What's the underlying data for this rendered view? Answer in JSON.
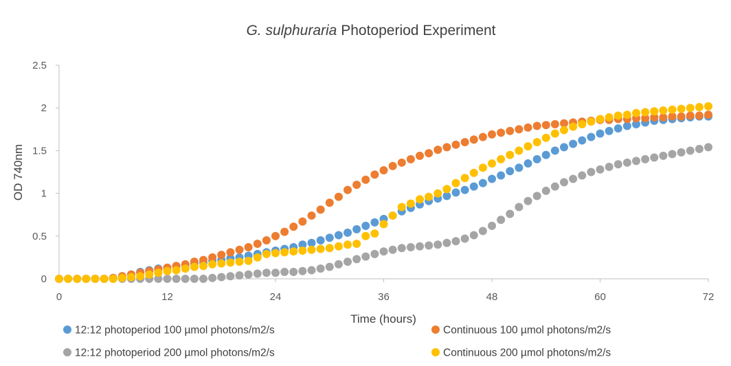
{
  "chart_data": {
    "type": "scatter",
    "title": {
      "italic": "G. sulphuraria",
      "normal": " Photoperiod Experiment"
    },
    "xlabel": "Time (hours)",
    "ylabel": "OD 740nm",
    "xlim": [
      0,
      72
    ],
    "ylim": [
      0,
      2.5
    ],
    "xticks": [
      0,
      12,
      24,
      36,
      48,
      60,
      72
    ],
    "yticks": [
      0,
      0.5,
      1,
      1.5,
      2,
      2.5
    ],
    "ytick_labels": [
      "0",
      "0.5",
      "1",
      "1.5",
      "2",
      "2.5"
    ],
    "grid": false,
    "legend_position": "bottom",
    "x": [
      0,
      1,
      2,
      3,
      4,
      5,
      6,
      7,
      8,
      9,
      10,
      11,
      12,
      13,
      14,
      15,
      16,
      17,
      18,
      19,
      20,
      21,
      22,
      23,
      24,
      25,
      26,
      27,
      28,
      29,
      30,
      31,
      32,
      33,
      34,
      35,
      36,
      37,
      38,
      39,
      40,
      41,
      42,
      43,
      44,
      45,
      46,
      47,
      48,
      49,
      50,
      51,
      52,
      53,
      54,
      55,
      56,
      57,
      58,
      59,
      60,
      61,
      62,
      63,
      64,
      65,
      66,
      67,
      68,
      69,
      70,
      71,
      72
    ],
    "series": [
      {
        "name": "12:12 photoperiod 100 µmol photons/m2/s",
        "color": "#5B9BD5",
        "values": [
          0.0,
          0.0,
          0.0,
          0.0,
          0.0,
          0.0,
          0.01,
          0.03,
          0.05,
          0.08,
          0.1,
          0.12,
          0.13,
          0.15,
          0.16,
          0.18,
          0.19,
          0.21,
          0.22,
          0.24,
          0.25,
          0.27,
          0.29,
          0.31,
          0.33,
          0.35,
          0.37,
          0.4,
          0.42,
          0.45,
          0.48,
          0.51,
          0.54,
          0.58,
          0.62,
          0.66,
          0.7,
          0.74,
          0.79,
          0.83,
          0.87,
          0.91,
          0.94,
          0.97,
          1.01,
          1.04,
          1.08,
          1.12,
          1.17,
          1.21,
          1.26,
          1.3,
          1.35,
          1.4,
          1.45,
          1.5,
          1.54,
          1.58,
          1.62,
          1.66,
          1.7,
          1.73,
          1.76,
          1.79,
          1.81,
          1.83,
          1.85,
          1.86,
          1.87,
          1.88,
          1.89,
          1.9,
          1.9
        ]
      },
      {
        "name": "Continuous 100 µmol photons/m2/s",
        "color": "#ED7D31",
        "values": [
          0.0,
          0.0,
          0.0,
          0.0,
          0.0,
          0.0,
          0.01,
          0.03,
          0.05,
          0.07,
          0.09,
          0.11,
          0.13,
          0.15,
          0.17,
          0.2,
          0.22,
          0.25,
          0.28,
          0.31,
          0.34,
          0.37,
          0.41,
          0.45,
          0.5,
          0.55,
          0.61,
          0.67,
          0.74,
          0.81,
          0.89,
          0.96,
          1.04,
          1.1,
          1.16,
          1.22,
          1.27,
          1.32,
          1.36,
          1.4,
          1.44,
          1.47,
          1.51,
          1.54,
          1.57,
          1.6,
          1.63,
          1.66,
          1.69,
          1.71,
          1.73,
          1.75,
          1.77,
          1.79,
          1.8,
          1.81,
          1.82,
          1.83,
          1.84,
          1.85,
          1.86,
          1.86,
          1.87,
          1.87,
          1.88,
          1.88,
          1.89,
          1.89,
          1.9,
          1.9,
          1.91,
          1.91,
          1.92
        ]
      },
      {
        "name": "12:12 photoperiod 200 µmol photons/m2/s",
        "color": "#A5A5A5",
        "values": [
          0.0,
          0.0,
          0.0,
          0.0,
          0.0,
          0.0,
          0.0,
          0.0,
          0.0,
          0.0,
          0.0,
          0.0,
          0.0,
          0.0,
          0.0,
          0.0,
          0.0,
          0.01,
          0.02,
          0.03,
          0.04,
          0.05,
          0.06,
          0.07,
          0.07,
          0.08,
          0.08,
          0.09,
          0.1,
          0.12,
          0.14,
          0.17,
          0.2,
          0.23,
          0.26,
          0.29,
          0.32,
          0.34,
          0.36,
          0.37,
          0.38,
          0.39,
          0.4,
          0.42,
          0.44,
          0.47,
          0.51,
          0.56,
          0.62,
          0.69,
          0.76,
          0.84,
          0.91,
          0.97,
          1.03,
          1.08,
          1.13,
          1.17,
          1.21,
          1.25,
          1.28,
          1.31,
          1.34,
          1.36,
          1.38,
          1.4,
          1.42,
          1.44,
          1.46,
          1.48,
          1.5,
          1.52,
          1.54
        ]
      },
      {
        "name": "Continuous 200 µmol photons/m2/s",
        "color": "#FFC000",
        "values": [
          0.0,
          0.0,
          0.0,
          0.0,
          0.0,
          0.0,
          0.0,
          0.01,
          0.02,
          0.03,
          0.05,
          0.07,
          0.09,
          0.1,
          0.12,
          0.14,
          0.15,
          0.17,
          0.18,
          0.19,
          0.2,
          0.21,
          0.25,
          0.29,
          0.3,
          0.31,
          0.32,
          0.33,
          0.34,
          0.35,
          0.36,
          0.38,
          0.4,
          0.41,
          0.5,
          0.53,
          0.64,
          0.74,
          0.84,
          0.88,
          0.93,
          0.96,
          1.0,
          1.05,
          1.12,
          1.18,
          1.24,
          1.3,
          1.35,
          1.4,
          1.45,
          1.5,
          1.55,
          1.6,
          1.65,
          1.7,
          1.74,
          1.78,
          1.81,
          1.84,
          1.87,
          1.89,
          1.91,
          1.92,
          1.94,
          1.95,
          1.96,
          1.97,
          1.98,
          1.99,
          2.0,
          2.01,
          2.02
        ]
      }
    ]
  }
}
